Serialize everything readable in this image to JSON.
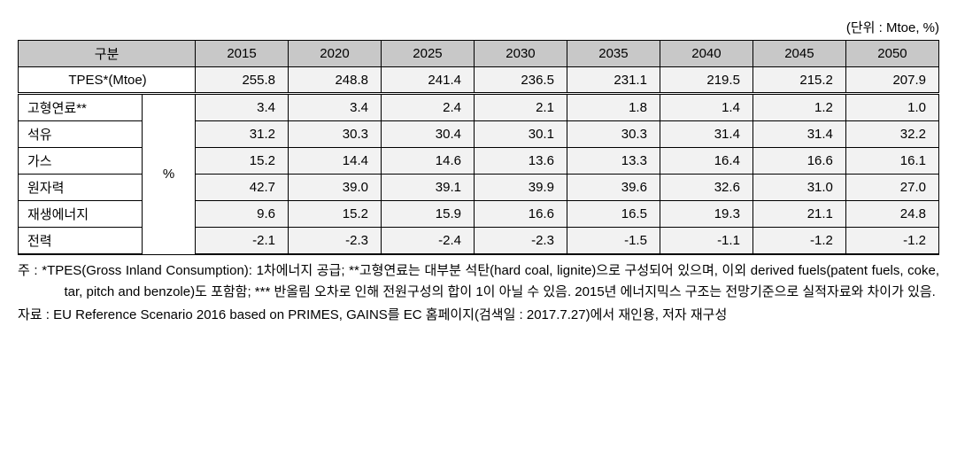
{
  "unit_label": "(단위 : Mtoe, %)",
  "headers": {
    "category": "구분",
    "years": [
      "2015",
      "2020",
      "2025",
      "2030",
      "2035",
      "2040",
      "2045",
      "2050"
    ]
  },
  "tpes": {
    "label": "TPES*(Mtoe)",
    "values": [
      "255.8",
      "248.8",
      "241.4",
      "236.5",
      "231.1",
      "219.5",
      "215.2",
      "207.9"
    ]
  },
  "unit_symbol": "%",
  "rows": [
    {
      "label": "고형연료**",
      "values": [
        "3.4",
        "3.4",
        "2.4",
        "2.1",
        "1.8",
        "1.4",
        "1.2",
        "1.0"
      ]
    },
    {
      "label": "석유",
      "values": [
        "31.2",
        "30.3",
        "30.4",
        "30.1",
        "30.3",
        "31.4",
        "31.4",
        "32.2"
      ]
    },
    {
      "label": "가스",
      "values": [
        "15.2",
        "14.4",
        "14.6",
        "13.6",
        "13.3",
        "16.4",
        "16.6",
        "16.1"
      ]
    },
    {
      "label": "원자력",
      "values": [
        "42.7",
        "39.0",
        "39.1",
        "39.9",
        "39.6",
        "32.6",
        "31.0",
        "27.0"
      ]
    },
    {
      "label": "재생에너지",
      "values": [
        "9.6",
        "15.2",
        "15.9",
        "16.6",
        "16.5",
        "19.3",
        "21.1",
        "24.8"
      ]
    },
    {
      "label": "전력",
      "values": [
        "-2.1",
        "-2.3",
        "-2.4",
        "-2.3",
        "-1.5",
        "-1.1",
        "-1.2",
        "-1.2"
      ]
    }
  ],
  "footnotes": {
    "note": "주 : *TPES(Gross Inland Consumption): 1차에너지 공급; **고형연료는 대부분 석탄(hard coal, lignite)으로 구성되어 있으며, 이외 derived fuels(patent fuels, coke, tar, pitch and benzole)도 포함함; *** 반올림 오차로 인해 전원구성의 합이 1이 아닐 수 있음. 2015년 에너지믹스 구조는 전망기준으로 실적자료와 차이가 있음.",
    "source": "자료 : EU Reference Scenario 2016 based on PRIMES, GAINS를 EC 홈페이지(검색일 : 2017.7.27)에서 재인용, 저자 재구성"
  }
}
